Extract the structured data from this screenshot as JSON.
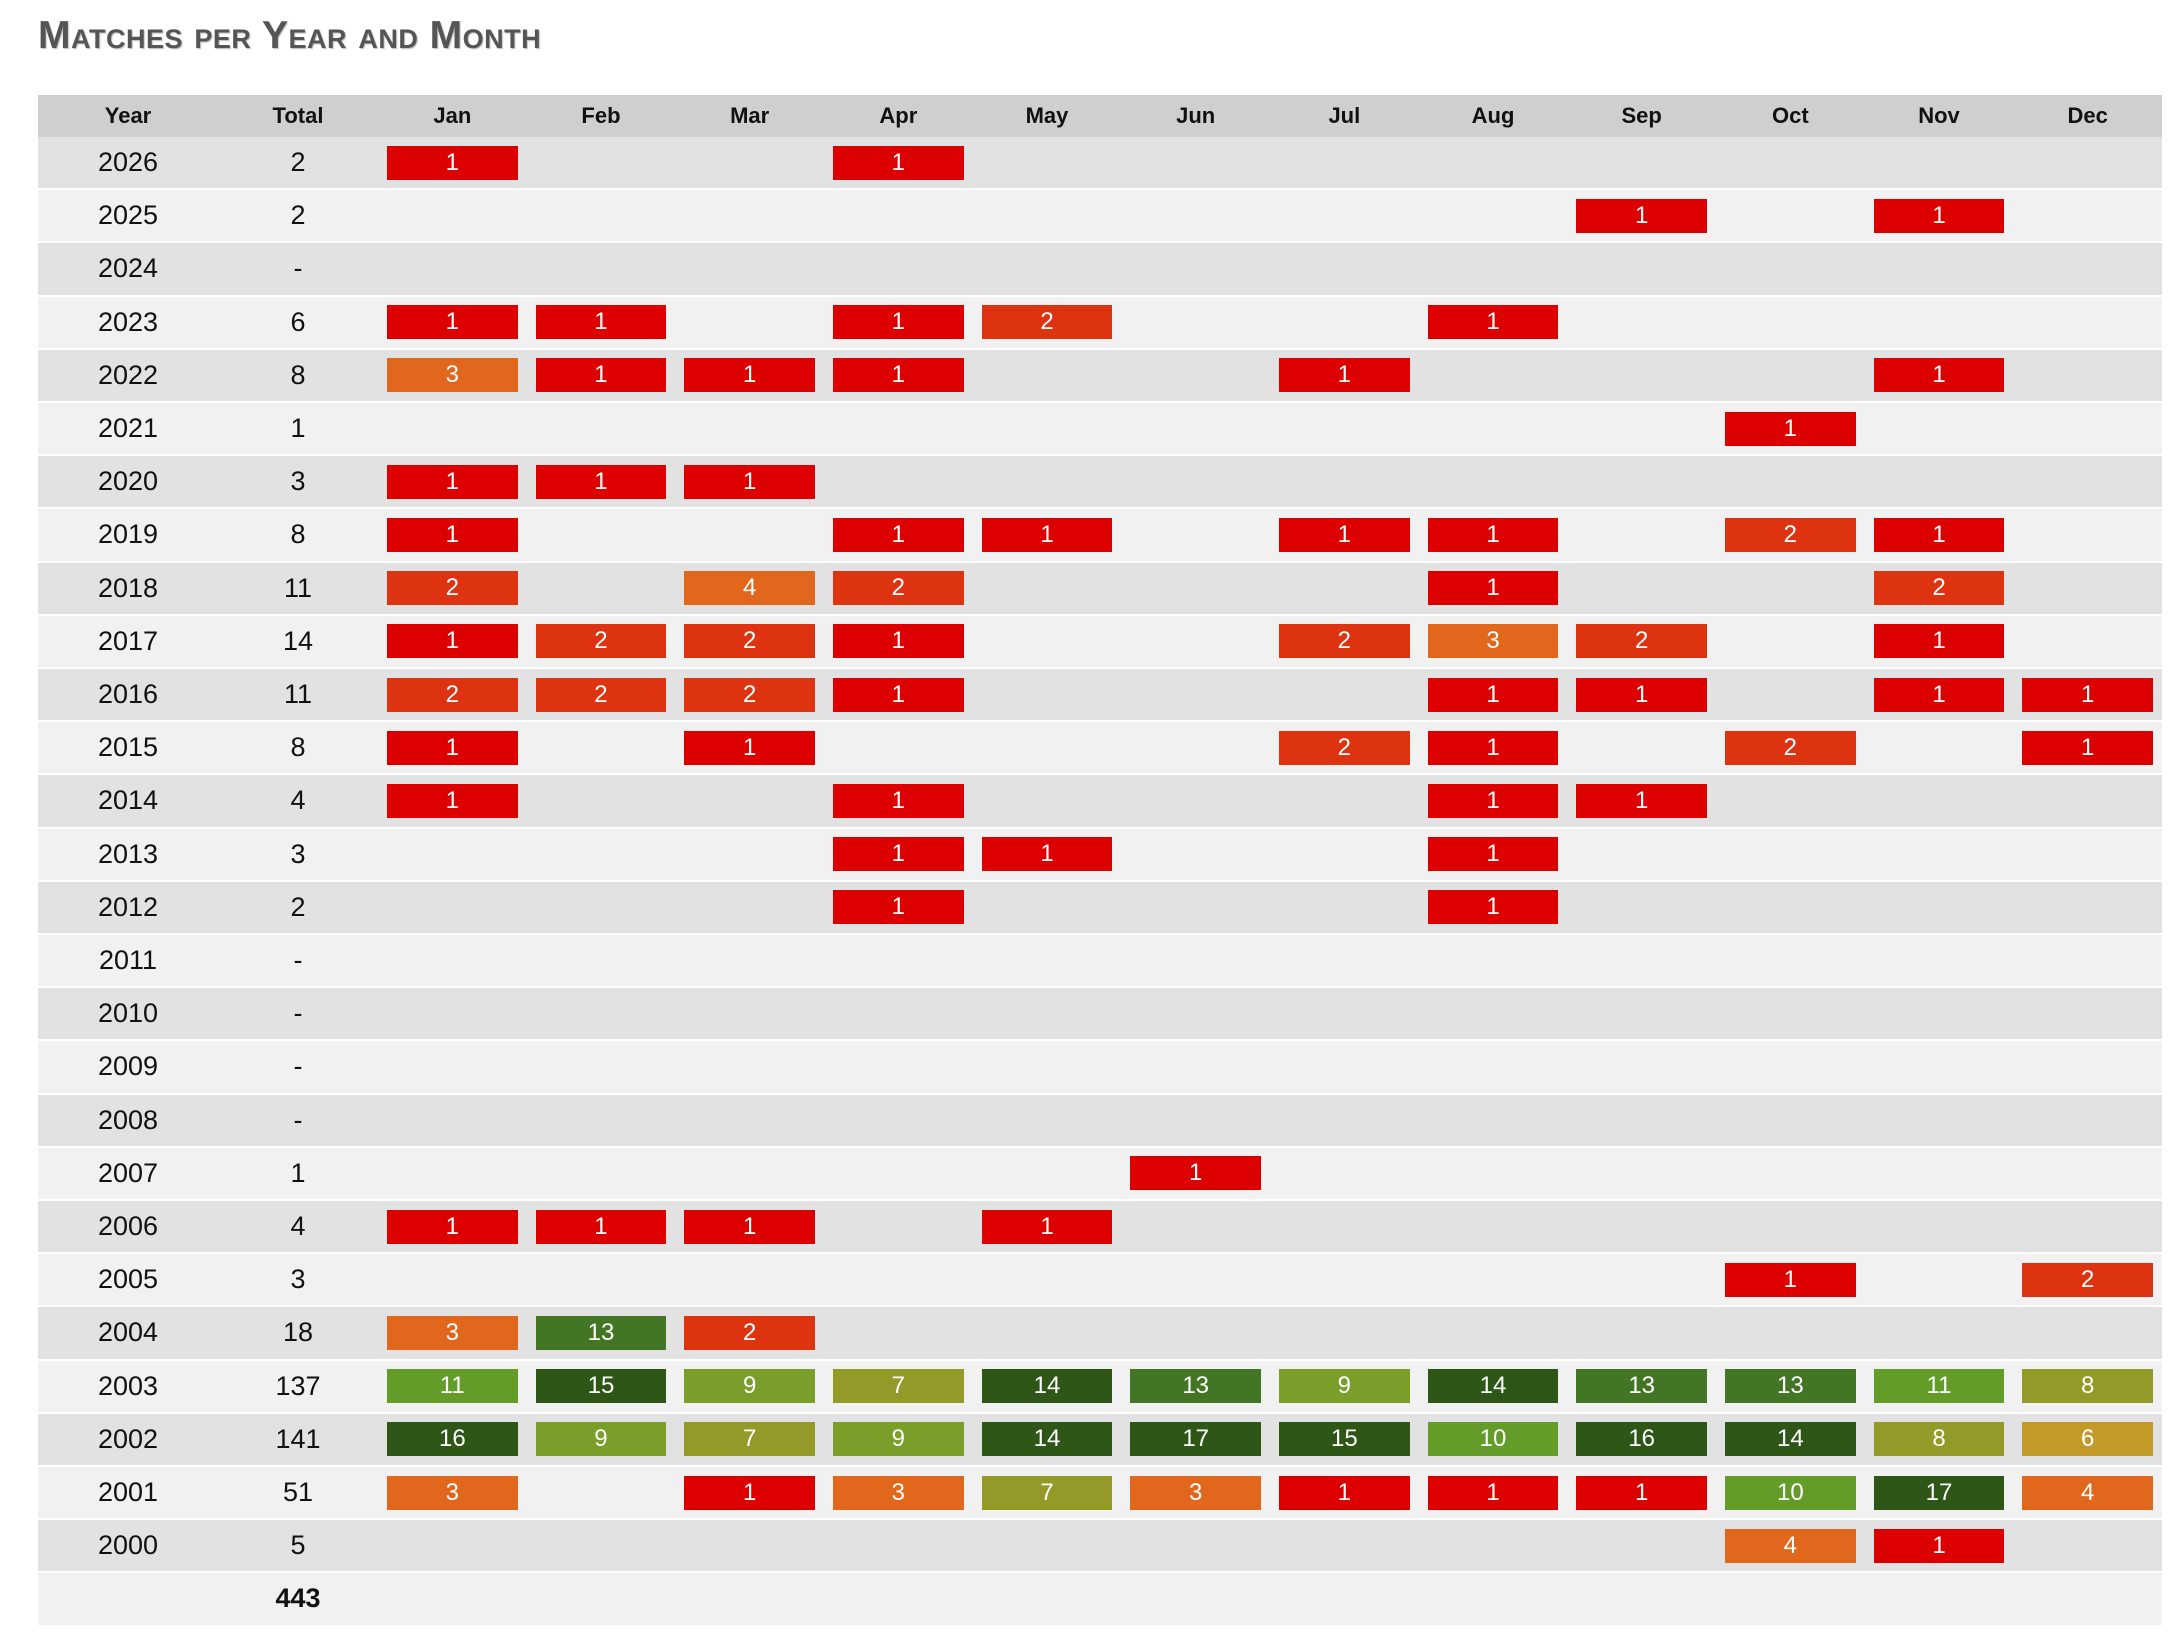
{
  "title": "Matches per Year and Month",
  "chart_data": {
    "type": "heatmap",
    "title": "Matches per Year and Month",
    "columns": [
      "Year",
      "Total",
      "Jan",
      "Feb",
      "Mar",
      "Apr",
      "May",
      "Jun",
      "Jul",
      "Aug",
      "Sep",
      "Oct",
      "Nov",
      "Dec"
    ],
    "months": [
      "Jan",
      "Feb",
      "Mar",
      "Apr",
      "May",
      "Jun",
      "Jul",
      "Aug",
      "Sep",
      "Oct",
      "Nov",
      "Dec"
    ],
    "rows": [
      {
        "year": "2026",
        "total": "2",
        "values": [
          1,
          null,
          null,
          1,
          null,
          null,
          null,
          null,
          null,
          null,
          null,
          null
        ]
      },
      {
        "year": "2025",
        "total": "2",
        "values": [
          null,
          null,
          null,
          null,
          null,
          null,
          null,
          null,
          1,
          null,
          1,
          null
        ]
      },
      {
        "year": "2024",
        "total": "-",
        "values": [
          null,
          null,
          null,
          null,
          null,
          null,
          null,
          null,
          null,
          null,
          null,
          null
        ]
      },
      {
        "year": "2023",
        "total": "6",
        "values": [
          1,
          1,
          null,
          1,
          2,
          null,
          null,
          1,
          null,
          null,
          null,
          null
        ]
      },
      {
        "year": "2022",
        "total": "8",
        "values": [
          3,
          1,
          1,
          1,
          null,
          null,
          1,
          null,
          null,
          null,
          1,
          null
        ]
      },
      {
        "year": "2021",
        "total": "1",
        "values": [
          null,
          null,
          null,
          null,
          null,
          null,
          null,
          null,
          null,
          1,
          null,
          null
        ]
      },
      {
        "year": "2020",
        "total": "3",
        "values": [
          1,
          1,
          1,
          null,
          null,
          null,
          null,
          null,
          null,
          null,
          null,
          null
        ]
      },
      {
        "year": "2019",
        "total": "8",
        "values": [
          1,
          null,
          null,
          1,
          1,
          null,
          1,
          1,
          null,
          2,
          1,
          null
        ]
      },
      {
        "year": "2018",
        "total": "11",
        "values": [
          2,
          null,
          4,
          2,
          null,
          null,
          null,
          1,
          null,
          null,
          2,
          null
        ]
      },
      {
        "year": "2017",
        "total": "14",
        "values": [
          1,
          2,
          2,
          1,
          null,
          null,
          2,
          3,
          2,
          null,
          1,
          null
        ]
      },
      {
        "year": "2016",
        "total": "11",
        "values": [
          2,
          2,
          2,
          1,
          null,
          null,
          null,
          1,
          1,
          null,
          1,
          1
        ]
      },
      {
        "year": "2015",
        "total": "8",
        "values": [
          1,
          null,
          1,
          null,
          null,
          null,
          2,
          1,
          null,
          2,
          null,
          1
        ]
      },
      {
        "year": "2014",
        "total": "4",
        "values": [
          1,
          null,
          null,
          1,
          null,
          null,
          null,
          1,
          1,
          null,
          null,
          null
        ]
      },
      {
        "year": "2013",
        "total": "3",
        "values": [
          null,
          null,
          null,
          1,
          1,
          null,
          null,
          1,
          null,
          null,
          null,
          null
        ]
      },
      {
        "year": "2012",
        "total": "2",
        "values": [
          null,
          null,
          null,
          1,
          null,
          null,
          null,
          1,
          null,
          null,
          null,
          null
        ]
      },
      {
        "year": "2011",
        "total": "-",
        "values": [
          null,
          null,
          null,
          null,
          null,
          null,
          null,
          null,
          null,
          null,
          null,
          null
        ]
      },
      {
        "year": "2010",
        "total": "-",
        "values": [
          null,
          null,
          null,
          null,
          null,
          null,
          null,
          null,
          null,
          null,
          null,
          null
        ]
      },
      {
        "year": "2009",
        "total": "-",
        "values": [
          null,
          null,
          null,
          null,
          null,
          null,
          null,
          null,
          null,
          null,
          null,
          null
        ]
      },
      {
        "year": "2008",
        "total": "-",
        "values": [
          null,
          null,
          null,
          null,
          null,
          null,
          null,
          null,
          null,
          null,
          null,
          null
        ]
      },
      {
        "year": "2007",
        "total": "1",
        "values": [
          null,
          null,
          null,
          null,
          null,
          1,
          null,
          null,
          null,
          null,
          null,
          null
        ]
      },
      {
        "year": "2006",
        "total": "4",
        "values": [
          1,
          1,
          1,
          null,
          1,
          null,
          null,
          null,
          null,
          null,
          null,
          null
        ]
      },
      {
        "year": "2005",
        "total": "3",
        "values": [
          null,
          null,
          null,
          null,
          null,
          null,
          null,
          null,
          null,
          1,
          null,
          2
        ]
      },
      {
        "year": "2004",
        "total": "18",
        "values": [
          3,
          13,
          2,
          null,
          null,
          null,
          null,
          null,
          null,
          null,
          null,
          null
        ]
      },
      {
        "year": "2003",
        "total": "137",
        "values": [
          11,
          15,
          9,
          7,
          14,
          13,
          9,
          14,
          13,
          13,
          11,
          8
        ]
      },
      {
        "year": "2002",
        "total": "141",
        "values": [
          16,
          9,
          7,
          9,
          14,
          17,
          15,
          10,
          16,
          14,
          8,
          6
        ]
      },
      {
        "year": "2001",
        "total": "51",
        "values": [
          3,
          null,
          1,
          3,
          7,
          3,
          1,
          1,
          1,
          10,
          17,
          4
        ]
      },
      {
        "year": "2000",
        "total": "5",
        "values": [
          null,
          null,
          null,
          null,
          null,
          null,
          null,
          null,
          null,
          4,
          1,
          null
        ]
      }
    ],
    "grand_total": "443",
    "color_scale": {
      "1": "#dd0000",
      "2": "#dd3311",
      "3": "#e0671c",
      "4": "#e0671c",
      "6": "#c29a28",
      "7": "#949a28",
      "8": "#949a28",
      "9": "#7a9e2a",
      "10": "#649c2a",
      "11": "#649c2a",
      "13": "#427625",
      "14": "#2e5717",
      "15": "#2e5717",
      "16": "#2e5717",
      "17": "#2e5717"
    },
    "row_colors": {
      "even": "#e2e2e2",
      "odd": "#f1f1f1",
      "header": "#cfcfcf"
    }
  }
}
